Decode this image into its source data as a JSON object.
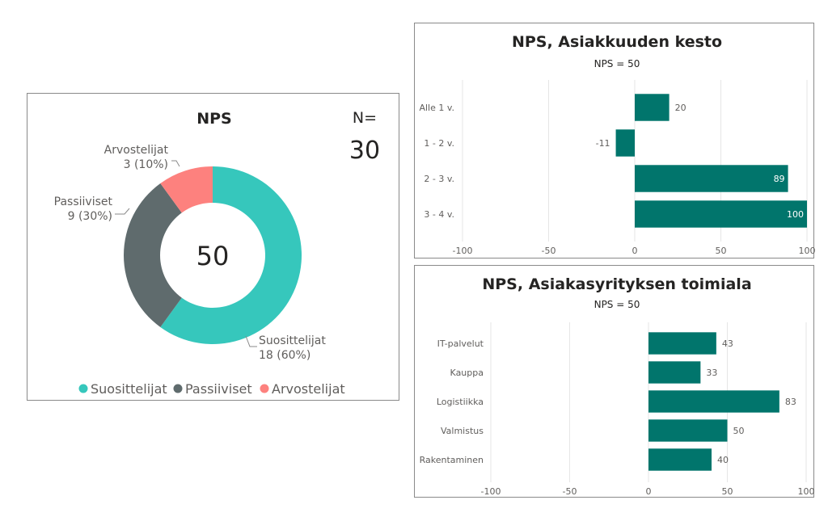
{
  "donut": {
    "title": "NPS",
    "n_label": "N=",
    "n_value": "30",
    "center_value": "50",
    "colors": {
      "promoters": "#36C7BC",
      "passives": "#5F6B6D",
      "detractors": "#FD817E"
    },
    "legend": [
      "Suosittelijat",
      "Passiiviset",
      "Arvostelijat"
    ]
  },
  "chart_data": [
    {
      "type": "pie",
      "title": "NPS",
      "center_text": "50",
      "slices": [
        {
          "name": "Suosittelijat",
          "value": 18,
          "label_line1": "Suosittelijat",
          "label_line2": "18 (60%)",
          "color": "#36C7BC"
        },
        {
          "name": "Passiiviset",
          "value": 9,
          "label_line1": "Passiiviset",
          "label_line2": "9 (30%)",
          "color": "#5F6B6D"
        },
        {
          "name": "Arvostelijat",
          "value": 3,
          "label_line1": "Arvostelijat",
          "label_line2": "3 (10%)",
          "color": "#FD817E"
        }
      ],
      "legend": "bottom"
    },
    {
      "type": "bar",
      "orientation": "horizontal",
      "title": "NPS, Asiakkuuden kesto",
      "subtitle": "NPS = 50",
      "categories": [
        "Alle 1 v.",
        "1 - 2 v.",
        "2 - 3 v.",
        "3 - 4 v."
      ],
      "values": [
        20,
        -11,
        89,
        100
      ],
      "value_labels": [
        "20",
        "-11",
        "89",
        "100"
      ],
      "xlim": [
        -100,
        100
      ],
      "xticks": [
        "-100",
        "-50",
        "0",
        "50",
        "100"
      ],
      "color": "#01756C",
      "grid": true
    },
    {
      "type": "bar",
      "orientation": "horizontal",
      "title": "NPS, Asiakasyrityksen toimiala",
      "subtitle": "NPS = 50",
      "categories": [
        "IT-palvelut",
        "Kauppa",
        "Logistiikka",
        "Valmistus",
        "Rakentaminen"
      ],
      "values": [
        43,
        33,
        83,
        50,
        40
      ],
      "value_labels": [
        "43",
        "33",
        "83",
        "50",
        "40"
      ],
      "xlim": [
        -100,
        100
      ],
      "xticks": [
        "-100",
        "-50",
        "0",
        "50",
        "100"
      ],
      "color": "#01756C",
      "grid": true
    }
  ]
}
